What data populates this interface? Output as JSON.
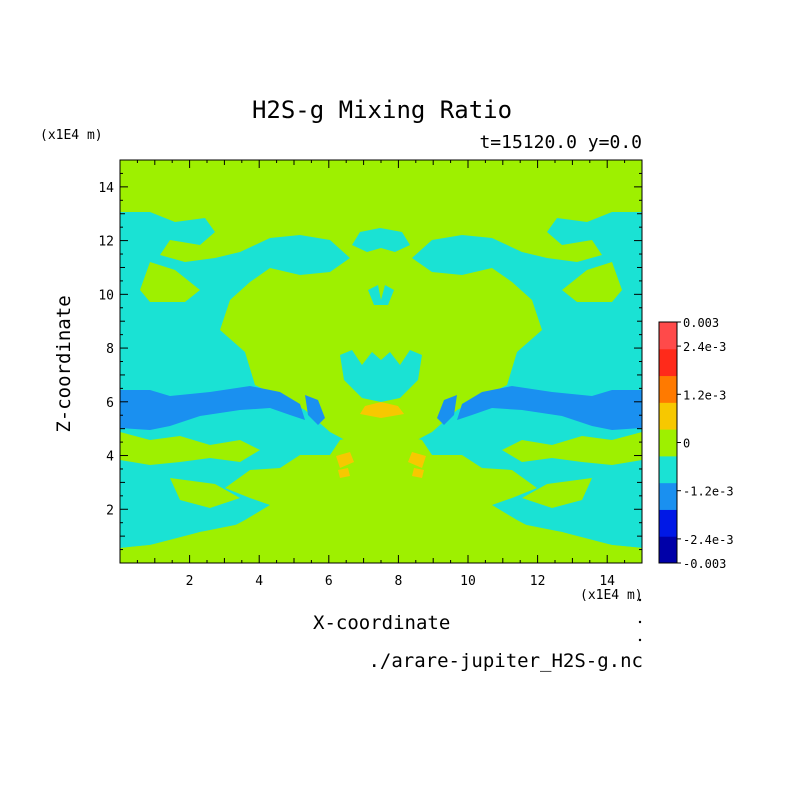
{
  "chart_data": {
    "type": "heatmap",
    "title": "H2S-g Mixing Ratio",
    "subtitle": "t=15120.0 y=0.0",
    "xlabel": "X-coordinate",
    "ylabel": "Z-coordinate",
    "x_unit": "(x1E4 m)",
    "z_unit": "(x1E4 m)",
    "xlim": [
      0,
      15
    ],
    "ylim": [
      0,
      15
    ],
    "x_ticks": [
      "2",
      "4",
      "6",
      "8",
      "10",
      "12",
      "14"
    ],
    "y_ticks": [
      "2",
      "4",
      "6",
      "8",
      "10",
      "12",
      "14"
    ],
    "source_file": "./arare-jupiter_H2S-g.nc",
    "colorbar": {
      "labels": [
        "0.003",
        "2.4e-3",
        "1.2e-3",
        "0",
        "-1.2e-3",
        "-2.4e-3",
        "-0.003"
      ],
      "levels": [
        -0.003,
        -0.0024,
        -0.0018,
        -0.0012,
        -0.0006,
        0,
        0.0006,
        0.0012,
        0.0018,
        0.0024,
        0.003
      ],
      "colors": [
        "#0000a8",
        "#0018e6",
        "#1a90f0",
        "#1ae2d4",
        "#9ef000",
        "#f7c800",
        "#ff7a00",
        "#ff2a1a",
        "#ff4a4a"
      ]
    },
    "regions": [
      {
        "level": "0 to 6e-4",
        "color": "#9ef000",
        "note": "background upper and central plume"
      },
      {
        "level": "-6e-4 to 0",
        "color": "#1ae2d4",
        "note": "side bands z 0.5–12.8"
      },
      {
        "level": "-1.2e-3 to -6e-4",
        "color": "#1a90f0",
        "note": "side pockets z ~5.5–6.5"
      },
      {
        "level": "6e-4 to 1.8e-3",
        "color": "#f7c800",
        "note": "small patches x ~6.5–9, z ~3.5–6"
      }
    ]
  }
}
